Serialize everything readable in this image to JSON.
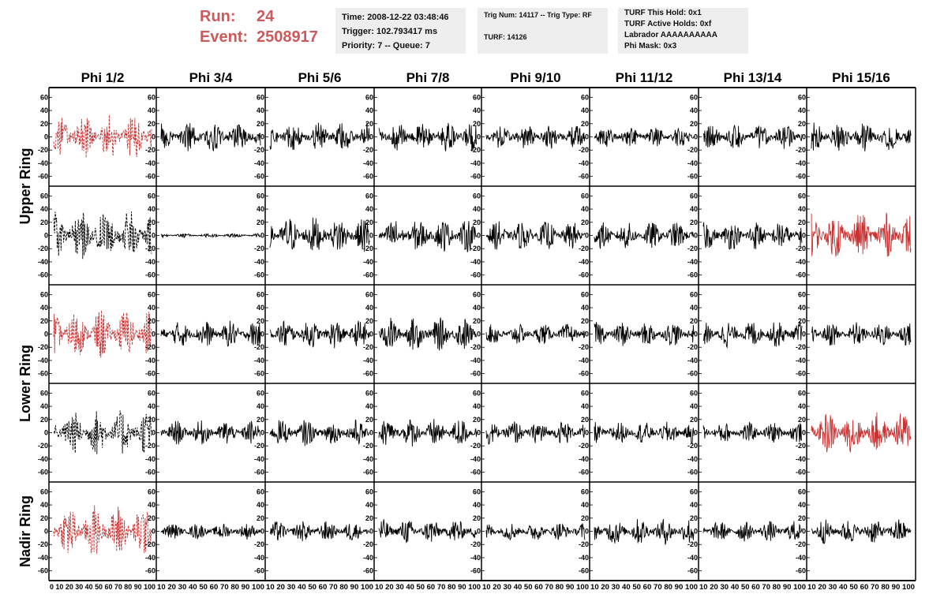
{
  "header": {
    "run_label": "Run:",
    "run_value": "24",
    "event_label": "Event:",
    "event_value": "2508917",
    "info_box_1": [
      "Time: 2008-12-22 03:48:46",
      "Trigger: 102.793417 ms",
      "Priority: 7 -- Queue: 7"
    ],
    "info_box_2": [
      "Trig Num: 14117 -- Trig Type: RF",
      "",
      "TURF: 14126"
    ],
    "info_box_3": [
      "TURF This Hold: 0x1",
      "TURF Active Holds: 0xf",
      "Labrador AAAAAAAAAA",
      "Phi Mask: 0x3"
    ]
  },
  "colors": {
    "highlight": "#cd5a5a",
    "trace_red": "#c83232",
    "trace_black": "#000000"
  },
  "chart_data": {
    "type": "line",
    "columns": [
      "Phi 1/2",
      "Phi 3/4",
      "Phi 5/6",
      "Phi 7/8",
      "Phi 9/10",
      "Phi 11/12",
      "Phi 13/14",
      "Phi 15/16"
    ],
    "row_groups": [
      {
        "label": "Upper Ring",
        "rows": [
          0,
          1
        ]
      },
      {
        "label": "Lower Ring",
        "rows": [
          2,
          3
        ]
      },
      {
        "label": "Nadir Ring",
        "rows": [
          4
        ]
      }
    ],
    "xlim": [
      0,
      100
    ],
    "ylim": [
      -70,
      70
    ],
    "x_ticks": [
      0,
      10,
      20,
      30,
      40,
      50,
      60,
      70,
      80,
      90,
      100
    ],
    "y_ticks": [
      -60,
      -40,
      -20,
      0,
      20,
      40,
      60
    ],
    "y_tick_labels": [
      "-60",
      "-40",
      "-20",
      "0",
      "20",
      "40",
      "60"
    ],
    "x_tick_labels": {
      "first": "0 10 20 30 40 50 60 70 80 90 100",
      "middle": "10 20 30 40 50 60 70 80 90 100",
      "last": "10 20 30 40 50 60 70 80 90 100"
    },
    "panels": [
      [
        {
          "style": "red-dashed",
          "amp": 22
        },
        {
          "style": "black",
          "amp": 14
        },
        {
          "style": "black",
          "amp": 14
        },
        {
          "style": "black",
          "amp": 14
        },
        {
          "style": "black",
          "amp": 12
        },
        {
          "style": "black",
          "amp": 10
        },
        {
          "style": "black",
          "amp": 12
        },
        {
          "style": "black",
          "amp": 14
        }
      ],
      [
        {
          "style": "black-dashed",
          "amp": 25
        },
        {
          "style": "black",
          "amp": 2
        },
        {
          "style": "black",
          "amp": 18
        },
        {
          "style": "black",
          "amp": 16
        },
        {
          "style": "black",
          "amp": 14
        },
        {
          "style": "black",
          "amp": 13
        },
        {
          "style": "black",
          "amp": 14
        },
        {
          "style": "red",
          "amp": 22
        }
      ],
      [
        {
          "style": "red-dashed",
          "amp": 24
        },
        {
          "style": "black",
          "amp": 13
        },
        {
          "style": "black",
          "amp": 14
        },
        {
          "style": "black",
          "amp": 16
        },
        {
          "style": "black",
          "amp": 10
        },
        {
          "style": "black",
          "amp": 12
        },
        {
          "style": "black",
          "amp": 13
        },
        {
          "style": "black",
          "amp": 12
        }
      ],
      [
        {
          "style": "black-dashed",
          "amp": 22
        },
        {
          "style": "black",
          "amp": 12
        },
        {
          "style": "black",
          "amp": 13
        },
        {
          "style": "black",
          "amp": 14
        },
        {
          "style": "black",
          "amp": 12
        },
        {
          "style": "black",
          "amp": 11
        },
        {
          "style": "black",
          "amp": 10
        },
        {
          "style": "red",
          "amp": 20
        }
      ],
      [
        {
          "style": "red-dashed",
          "amp": 26
        },
        {
          "style": "black",
          "amp": 8
        },
        {
          "style": "black",
          "amp": 10
        },
        {
          "style": "black",
          "amp": 12
        },
        {
          "style": "black",
          "amp": 9
        },
        {
          "style": "black",
          "amp": 13
        },
        {
          "style": "black",
          "amp": 10
        },
        {
          "style": "black",
          "amp": 12
        }
      ]
    ]
  }
}
